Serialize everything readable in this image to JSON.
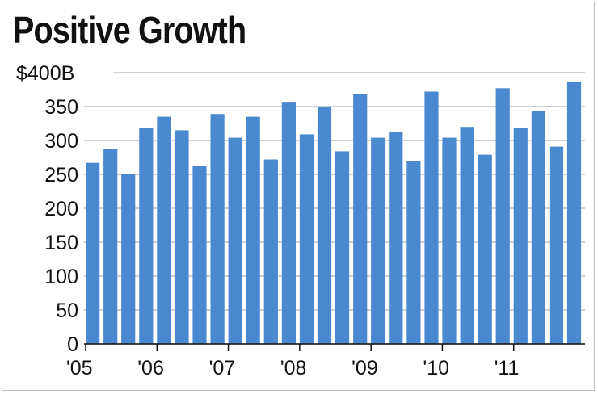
{
  "title": "Positive Growth",
  "chart_data": {
    "type": "bar",
    "title": "Positive Growth",
    "xlabel": "",
    "ylabel": "",
    "ylim": [
      0,
      400
    ],
    "grid": true,
    "bar_color": "#4a89d0",
    "grid_color": "#bfbfbf",
    "y_ticks": [
      0,
      50,
      100,
      150,
      200,
      250,
      300,
      350,
      400
    ],
    "y_tick_labels": [
      "0",
      "50",
      "100",
      "150",
      "200",
      "250",
      "300",
      "350",
      "$400B"
    ],
    "x_tick_labels": [
      "'05",
      "'06",
      "'07",
      "'08",
      "'09",
      "'10",
      "'11"
    ],
    "values": [
      267,
      288,
      250,
      318,
      335,
      315,
      262,
      339,
      304,
      335,
      272,
      357,
      309,
      350,
      284,
      369,
      304,
      313,
      270,
      372,
      304,
      320,
      279,
      377,
      319,
      344,
      291,
      387
    ]
  }
}
